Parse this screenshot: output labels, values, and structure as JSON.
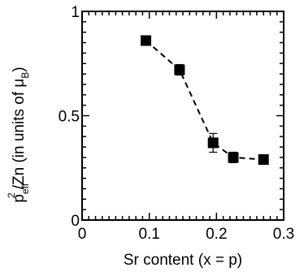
{
  "chart_data": {
    "type": "scatter",
    "xlabel": "Sr content (x = p)",
    "ylabel": {
      "p": "p",
      "eff": "eff",
      "sq": "2",
      "zn": "/Zn  (in units of μ",
      "b": "B",
      "close": ")"
    },
    "xlim": [
      0,
      0.3
    ],
    "ylim": [
      0,
      1
    ],
    "x_ticks": [
      {
        "value": 0,
        "label": "0"
      },
      {
        "value": 0.1,
        "label": "0.1"
      },
      {
        "value": 0.2,
        "label": "0.2"
      },
      {
        "value": 0.3,
        "label": "0.3"
      }
    ],
    "y_ticks": [
      {
        "value": 0,
        "label": "0"
      },
      {
        "value": 0.5,
        "label": "0.5"
      },
      {
        "value": 1,
        "label": "1"
      }
    ],
    "grid": false,
    "series": [
      {
        "marker": "square",
        "line_style": "dashed",
        "color": "#000000",
        "points": [
          {
            "x": 0.095,
            "y": 0.86,
            "err": 0.015
          },
          {
            "x": 0.145,
            "y": 0.72,
            "err": 0.025
          },
          {
            "x": 0.195,
            "y": 0.37,
            "err": 0.045
          },
          {
            "x": 0.225,
            "y": 0.3,
            "err": 0.025
          },
          {
            "x": 0.27,
            "y": 0.29,
            "err": 0.01
          }
        ]
      }
    ]
  }
}
